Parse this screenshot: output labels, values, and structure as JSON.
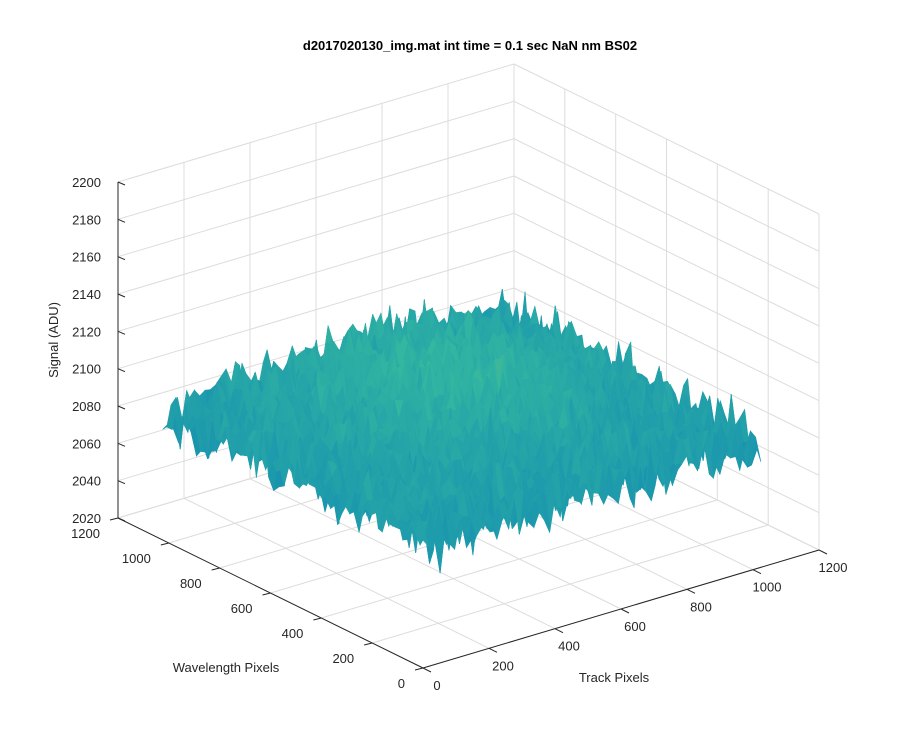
{
  "chart_data": {
    "type": "surface",
    "title": "d2017020130_img.mat int time = 0.1 sec  NaN nm BS02",
    "xlabel": "Track Pixels",
    "ylabel": "Wavelength Pixels",
    "zlabel": "Signal (ADU)",
    "xlim": [
      0,
      1200
    ],
    "ylim": [
      0,
      1200
    ],
    "zlim": [
      2020,
      2200
    ],
    "x_ticks": [
      "0",
      "200",
      "400",
      "600",
      "800",
      "1000",
      "1200"
    ],
    "y_ticks": [
      "0",
      "200",
      "400",
      "600",
      "800",
      "1000",
      "1200"
    ],
    "z_ticks": [
      "2020",
      "2040",
      "2060",
      "2080",
      "2100",
      "2120",
      "2140",
      "2160",
      "2180",
      "2200"
    ],
    "data_extent": {
      "track_pixels": [
        0,
        1024
      ],
      "wavelength_pixels": [
        0,
        1024
      ]
    },
    "signal_mean": 2095,
    "signal_typical_range": [
      2050,
      2170
    ],
    "colormap": "parula",
    "colors": {
      "low": "#0072bd",
      "mid": "#33b7a0",
      "high": "#edb120"
    },
    "grid": true
  }
}
